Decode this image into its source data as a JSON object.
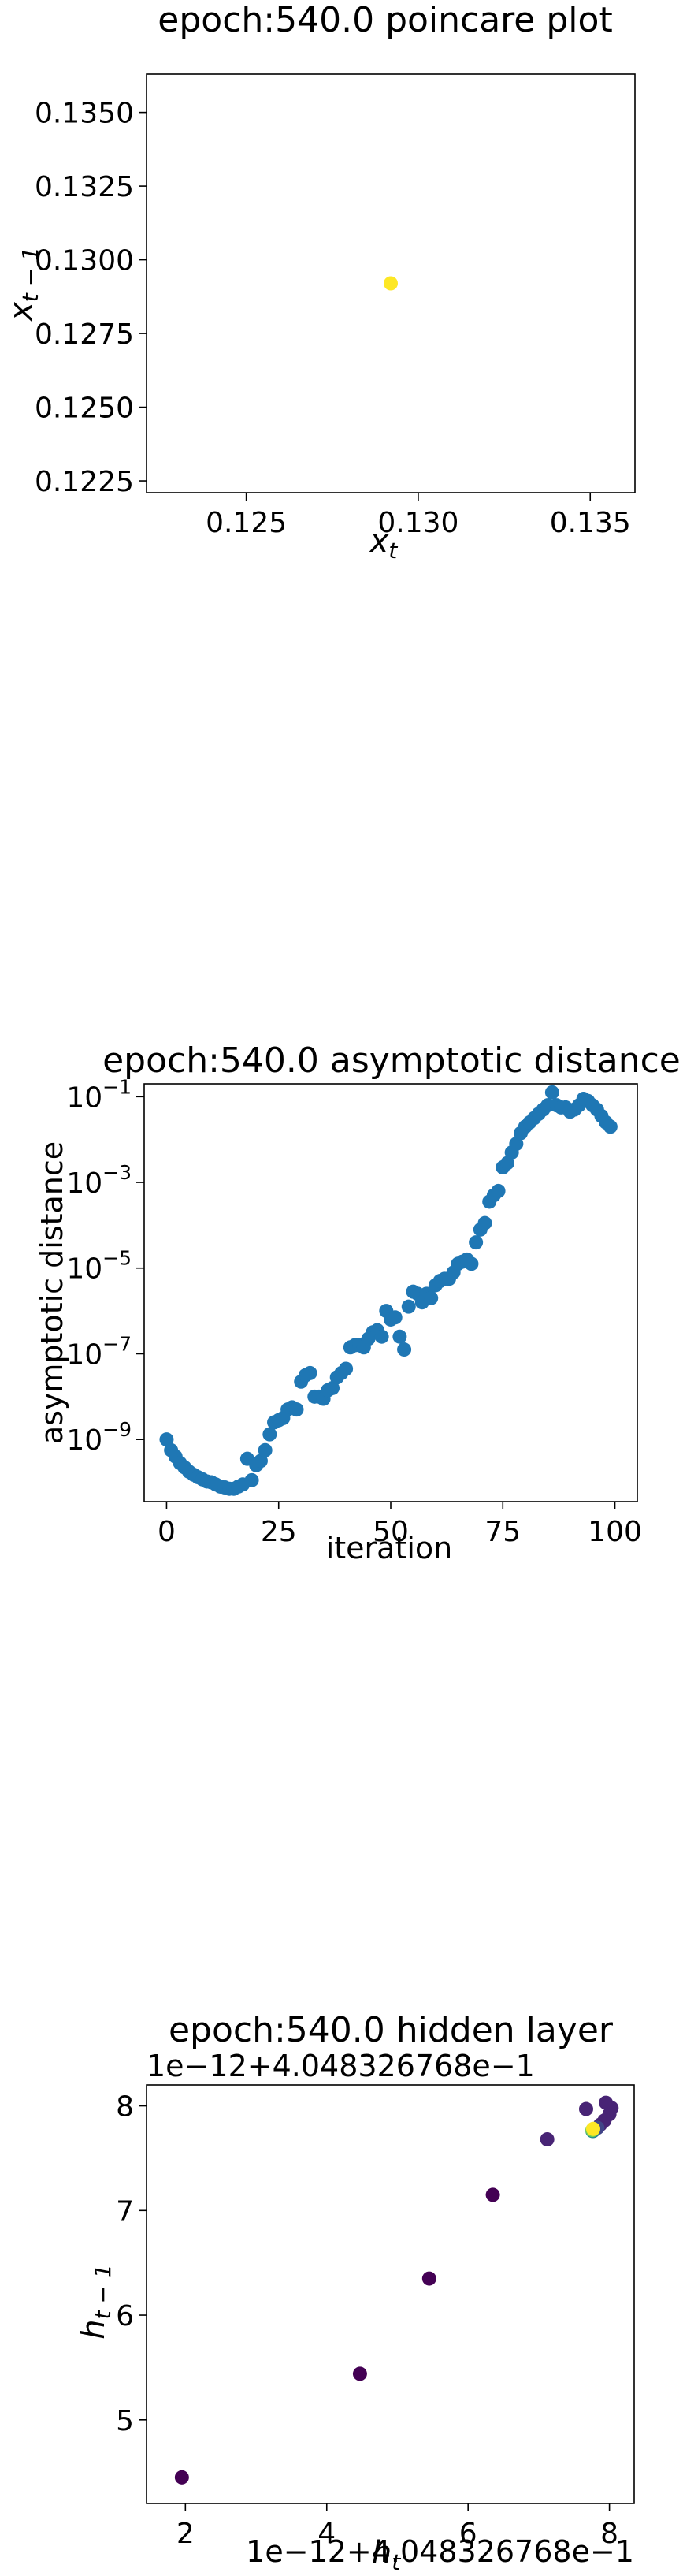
{
  "chart_data": [
    {
      "type": "scatter",
      "title": "epoch:540.0 poincare plot",
      "xlabel": "x_t",
      "ylabel": "x_{t-1}",
      "xlim": [
        0.1221,
        0.1363
      ],
      "ylim": [
        0.1221,
        0.1363
      ],
      "x_ticks": [
        0.125,
        0.13,
        0.135
      ],
      "x_tick_labels": [
        "0.125",
        "0.130",
        "0.135"
      ],
      "y_ticks": [
        0.1225,
        0.125,
        0.1275,
        0.13,
        0.1325,
        0.135
      ],
      "y_tick_labels": [
        "0.1225",
        "0.1250",
        "0.1275",
        "0.1300",
        "0.1325",
        "0.1350"
      ],
      "grid": false,
      "marker_color": "#fde725",
      "points": [
        [
          0.1292,
          0.1292
        ]
      ]
    },
    {
      "type": "scatter",
      "title": "epoch:540.0 asymptotic distance",
      "xlabel": "iteration",
      "ylabel": "asymptotic distance",
      "xlim": [
        -5,
        105
      ],
      "yscale": "log",
      "ylim_log10": [
        -10.45,
        -0.7
      ],
      "x_ticks": [
        0,
        25,
        50,
        75,
        100
      ],
      "x_tick_labels": [
        "0",
        "25",
        "50",
        "75",
        "100"
      ],
      "y_ticks_log10": [
        -9,
        -7,
        -5,
        -3,
        -1
      ],
      "y_tick_labels": [
        "10",
        "10",
        "10",
        "10",
        "10"
      ],
      "y_tick_exponents": [
        "−9",
        "−7",
        "−5",
        "−3",
        "−1"
      ],
      "grid": false,
      "marker_color": "#1f77b4",
      "x": [
        0,
        1,
        2,
        3,
        4,
        5,
        6,
        7,
        8,
        9,
        10,
        11,
        12,
        13,
        14,
        15,
        16,
        17,
        18,
        19,
        20,
        21,
        22,
        23,
        24,
        25,
        26,
        27,
        28,
        29,
        30,
        31,
        32,
        33,
        34,
        35,
        36,
        37,
        38,
        39,
        40,
        41,
        42,
        43,
        44,
        45,
        46,
        47,
        48,
        49,
        50,
        51,
        52,
        53,
        54,
        55,
        56,
        57,
        58,
        59,
        60,
        61,
        62,
        63,
        64,
        65,
        66,
        67,
        68,
        69,
        70,
        71,
        72,
        73,
        74,
        75,
        76,
        77,
        78,
        79,
        80,
        81,
        82,
        83,
        84,
        85,
        86,
        87,
        88,
        89,
        90,
        91,
        92,
        93,
        94,
        95,
        96,
        97,
        98,
        99
      ],
      "y_log10": [
        -9.0,
        -9.25,
        -9.4,
        -9.55,
        -9.65,
        -9.75,
        -9.82,
        -9.88,
        -9.93,
        -9.98,
        -10.0,
        -10.05,
        -10.1,
        -10.12,
        -10.15,
        -10.15,
        -10.1,
        -10.05,
        -9.45,
        -9.95,
        -9.6,
        -9.5,
        -9.25,
        -8.88,
        -8.6,
        -8.55,
        -8.5,
        -8.3,
        -8.25,
        -8.3,
        -7.65,
        -7.5,
        -7.45,
        -8.0,
        -8.0,
        -8.05,
        -7.85,
        -7.8,
        -7.55,
        -7.45,
        -7.35,
        -6.85,
        -6.8,
        -6.8,
        -6.85,
        -6.65,
        -6.5,
        -6.45,
        -6.6,
        -6.0,
        -6.2,
        -6.15,
        -6.6,
        -6.9,
        -5.9,
        -5.55,
        -5.6,
        -5.8,
        -5.6,
        -5.7,
        -5.4,
        -5.3,
        -5.25,
        -5.25,
        -5.1,
        -4.9,
        -4.85,
        -4.8,
        -4.9,
        -4.4,
        -4.1,
        -3.95,
        -3.45,
        -3.3,
        -3.2,
        -2.65,
        -2.55,
        -2.3,
        -2.1,
        -1.85,
        -1.7,
        -1.6,
        -1.5,
        -1.4,
        -1.3,
        -1.2,
        -0.9,
        -1.2,
        -1.25,
        -1.25,
        -1.35,
        -1.3,
        -1.2,
        -1.05,
        -1.1,
        -1.2,
        -1.3,
        -1.45,
        -1.6,
        -1.7
      ]
    },
    {
      "type": "scatter",
      "title": "epoch:540.0 hidden layer",
      "xlabel": "h_t",
      "ylabel": "h_{t-1}",
      "offset_label_x": "1e−12+4.048326768e−1",
      "offset_label_y": "1e−12+4.048326768e−1",
      "xlim": [
        1.45,
        8.35
      ],
      "ylim": [
        4.2,
        8.2
      ],
      "x_ticks": [
        2,
        4,
        6,
        8
      ],
      "x_tick_labels": [
        "2",
        "4",
        "6",
        "8"
      ],
      "y_ticks": [
        5,
        6,
        7,
        8
      ],
      "y_tick_labels": [
        "5",
        "6",
        "7",
        "8"
      ],
      "grid": false,
      "colormap": [
        "#440154",
        "#482475",
        "#414487",
        "#355f8d",
        "#2a788e",
        "#21918c",
        "#22a884",
        "#44bf70",
        "#7ad151",
        "#bddf26",
        "#fde725"
      ],
      "points": [
        {
          "x": 1.95,
          "y": 4.45,
          "c": 0.0
        },
        {
          "x": 4.47,
          "y": 5.44,
          "c": 0.02
        },
        {
          "x": 5.45,
          "y": 6.35,
          "c": 0.03
        },
        {
          "x": 6.35,
          "y": 7.15,
          "c": 0.04
        },
        {
          "x": 7.12,
          "y": 7.68,
          "c": 0.05
        },
        {
          "x": 7.67,
          "y": 7.97,
          "c": 0.06
        },
        {
          "x": 7.95,
          "y": 8.03,
          "c": 0.07
        },
        {
          "x": 8.03,
          "y": 7.98,
          "c": 0.08
        },
        {
          "x": 8.0,
          "y": 7.92,
          "c": 0.09
        },
        {
          "x": 7.93,
          "y": 7.86,
          "c": 0.1
        },
        {
          "x": 7.87,
          "y": 7.82,
          "c": 0.12
        },
        {
          "x": 7.83,
          "y": 7.79,
          "c": 0.15
        },
        {
          "x": 7.8,
          "y": 7.78,
          "c": 0.2
        },
        {
          "x": 7.77,
          "y": 7.76,
          "c": 0.3
        },
        {
          "x": 7.76,
          "y": 7.76,
          "c": 0.5
        },
        {
          "x": 7.76,
          "y": 7.77,
          "c": 0.8
        },
        {
          "x": 7.77,
          "y": 7.78,
          "c": 1.0
        }
      ]
    }
  ]
}
